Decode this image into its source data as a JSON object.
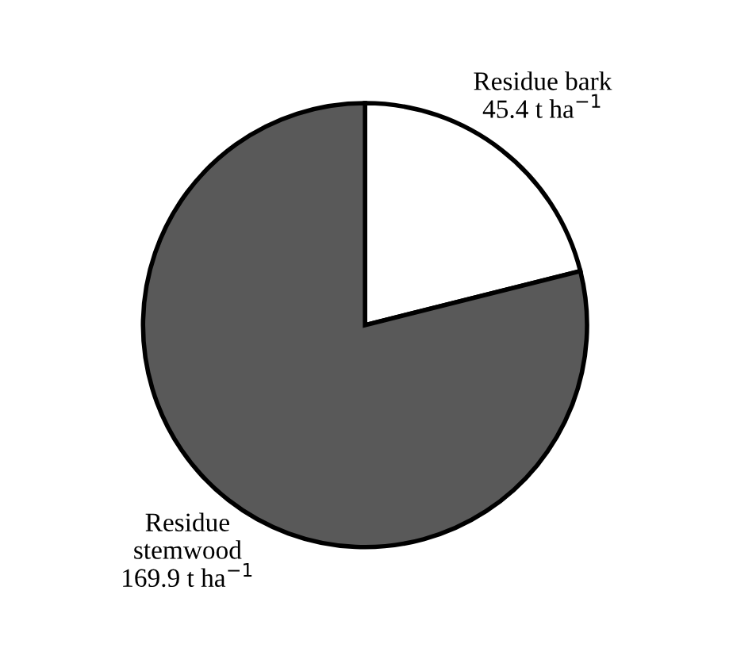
{
  "chart_data": {
    "type": "pie",
    "categories": [
      "Residue bark",
      "Residue\nstemwood"
    ],
    "values": [
      45.4,
      169.9
    ],
    "value_labels": [
      "45.4 t ha$^{−1}$",
      "169.9 t ha$^{−1}$"
    ],
    "colors": [
      "#ffffff",
      "#595959"
    ],
    "legend": false
  }
}
